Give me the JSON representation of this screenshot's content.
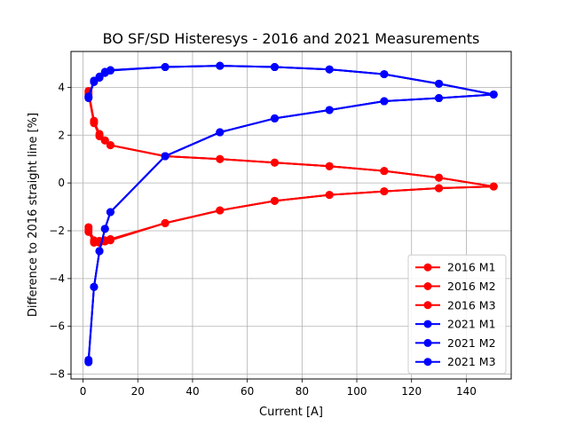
{
  "chart_data": {
    "type": "line",
    "title": "BO SF/SD Histeresys - 2016 and 2021 Measurements",
    "xlabel": "Current [A]",
    "ylabel": "Difference to 2016 straight line [%]",
    "xlim": [
      -4.4,
      156.4
    ],
    "ylim": [
      -8.2,
      5.5
    ],
    "xticks": [
      0,
      20,
      40,
      60,
      80,
      100,
      120,
      140
    ],
    "yticks": [
      -8,
      -6,
      -4,
      -2,
      0,
      2,
      4
    ],
    "grid": true,
    "legend_position": "lower-right",
    "series": [
      {
        "name": "2016 M1",
        "color": "#ff0000",
        "x": [
          2,
          4,
          6,
          8,
          10,
          30,
          50,
          70,
          90,
          110,
          130,
          150,
          130,
          110,
          90,
          70,
          50,
          30,
          10,
          8,
          6,
          4,
          2
        ],
        "y": [
          -1.85,
          -2.4,
          -2.42,
          -2.4,
          -2.35,
          -1.68,
          -1.15,
          -0.75,
          -0.5,
          -0.35,
          -0.22,
          -0.15,
          0.22,
          0.5,
          0.7,
          0.85,
          1.0,
          1.12,
          1.58,
          1.78,
          2.05,
          2.6,
          3.85
        ]
      },
      {
        "name": "2016 M2",
        "color": "#ff0000",
        "x": [
          2,
          4,
          6,
          8,
          10,
          30,
          50,
          70,
          90,
          110,
          130,
          150,
          130,
          110,
          90,
          70,
          50,
          30,
          10,
          8,
          6,
          4,
          2
        ],
        "y": [
          -1.95,
          -2.45,
          -2.45,
          -2.42,
          -2.38,
          -1.68,
          -1.15,
          -0.75,
          -0.5,
          -0.35,
          -0.22,
          -0.15,
          0.22,
          0.5,
          0.7,
          0.85,
          1.0,
          1.12,
          1.58,
          1.78,
          1.98,
          2.55,
          3.78
        ]
      },
      {
        "name": "2016 M3",
        "color": "#ff0000",
        "x": [
          2,
          4,
          6,
          8,
          10,
          30,
          50,
          70,
          90,
          110,
          130,
          150,
          130,
          110,
          90,
          70,
          50,
          30,
          10,
          8,
          6,
          4,
          2
        ],
        "y": [
          -2.05,
          -2.5,
          -2.5,
          -2.45,
          -2.4,
          -1.68,
          -1.15,
          -0.75,
          -0.5,
          -0.35,
          -0.22,
          -0.15,
          0.22,
          0.5,
          0.7,
          0.85,
          1.0,
          1.12,
          1.58,
          1.78,
          1.95,
          2.5,
          3.7
        ]
      },
      {
        "name": "2021 M1",
        "color": "#0000ff",
        "x": [
          2,
          4,
          6,
          8,
          10,
          30,
          50,
          70,
          90,
          110,
          130,
          150,
          130,
          110,
          90,
          70,
          50,
          30,
          10,
          8,
          6,
          4,
          2
        ],
        "y": [
          -7.4,
          -4.35,
          -2.85,
          -1.92,
          -1.22,
          1.12,
          2.12,
          2.7,
          3.05,
          3.42,
          3.55,
          3.7,
          4.15,
          4.55,
          4.75,
          4.85,
          4.9,
          4.85,
          4.72,
          4.65,
          4.45,
          4.28,
          3.62
        ]
      },
      {
        "name": "2021 M2",
        "color": "#0000ff",
        "x": [
          2,
          4,
          6,
          8,
          10,
          30,
          50,
          70,
          90,
          110,
          130,
          150,
          130,
          110,
          90,
          70,
          50,
          30,
          10,
          8,
          6,
          4,
          2
        ],
        "y": [
          -7.45,
          -4.35,
          -2.85,
          -1.92,
          -1.22,
          1.12,
          2.12,
          2.7,
          3.05,
          3.42,
          3.55,
          3.7,
          4.15,
          4.55,
          4.75,
          4.85,
          4.9,
          4.85,
          4.72,
          4.62,
          4.42,
          4.25,
          3.58
        ]
      },
      {
        "name": "2021 M3",
        "color": "#0000ff",
        "x": [
          2,
          4,
          6,
          8,
          10,
          30,
          50,
          70,
          90,
          110,
          130,
          150,
          130,
          110,
          90,
          70,
          50,
          30,
          10,
          8,
          6,
          4,
          2
        ],
        "y": [
          -7.5,
          -4.35,
          -2.85,
          -1.92,
          -1.22,
          1.12,
          2.12,
          2.7,
          3.05,
          3.42,
          3.55,
          3.7,
          4.15,
          4.55,
          4.75,
          4.85,
          4.9,
          4.85,
          4.7,
          4.6,
          4.4,
          4.22,
          3.55
        ]
      }
    ]
  }
}
